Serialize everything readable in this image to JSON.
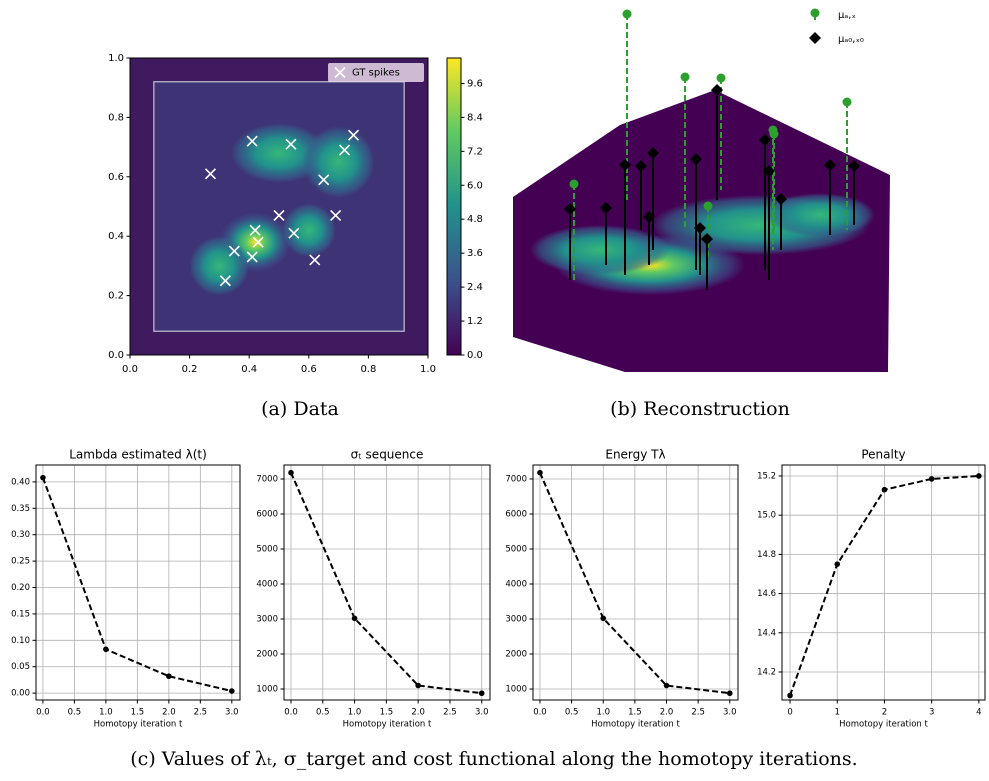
{
  "chart_data": [
    {
      "type": "scatter",
      "caption": "(a) Data",
      "series": [
        {
          "name": "GT spikes",
          "color": "#ffffff",
          "marker": "x",
          "x": [
            0.41,
            0.54,
            0.75,
            0.72,
            0.27,
            0.65,
            0.5,
            0.69,
            0.42,
            0.55,
            0.43,
            0.35,
            0.41,
            0.62,
            0.32
          ],
          "values": [
            0.72,
            0.71,
            0.74,
            0.69,
            0.61,
            0.59,
            0.47,
            0.47,
            0.42,
            0.41,
            0.38,
            0.35,
            0.33,
            0.32,
            0.25
          ]
        }
      ],
      "box": [
        0.08,
        0.92
      ],
      "xlim": [
        0,
        1
      ],
      "ylim": [
        0,
        1
      ],
      "xticks": [
        {
          "value": 0,
          "label": "0.0"
        },
        0.2,
        0.4,
        0.6,
        0.8,
        {
          "value": 1,
          "label": "1.0"
        }
      ],
      "yticks": [
        {
          "value": 0,
          "label": "0.0"
        },
        0.2,
        0.4,
        0.6,
        0.8,
        {
          "value": 1,
          "label": "1.0"
        }
      ],
      "legend": "upper right",
      "colormap": "viridis",
      "colorbar": {
        "lim": [
          0,
          10.5
        ],
        "ticks": [
          {
            "value": 0,
            "label": "0.0"
          },
          1.2,
          2.4,
          3.6,
          4.8,
          {
            "value": 6,
            "label": "6.0"
          },
          7.2,
          8.4,
          9.6
        ]
      }
    },
    {
      "type": "stem3d",
      "caption": "(b) Reconstruction",
      "series": [
        {
          "name": "μₐ,ₓ",
          "color": "#2ca02c",
          "marker": "circle"
        },
        {
          "name": "μₐ₀,ₓ₀",
          "color": "#000000",
          "marker": "diamond"
        }
      ]
    },
    {
      "type": "line",
      "title": "Lambda estimated λ(t)",
      "xlabel": "Homotopy iteration t",
      "color": "#000000",
      "x": [
        0,
        1,
        2,
        3
      ],
      "values": [
        0.408,
        0.083,
        0.032,
        0.004
      ],
      "xlim": [
        -0.11,
        3.13
      ],
      "ylim": [
        -0.013,
        0.432
      ],
      "grid": true,
      "xticks": [
        {
          "value": 0,
          "label": "0.0"
        },
        0.5,
        {
          "value": 1,
          "label": "1.0"
        },
        1.5,
        {
          "value": 2,
          "label": "2.0"
        },
        2.5,
        {
          "value": 3,
          "label": "3.0"
        }
      ],
      "yticks": [
        {
          "value": 0,
          "label": "0.00"
        },
        0.05,
        {
          "value": 0.1,
          "label": "0.10"
        },
        0.15,
        {
          "value": 0.2,
          "label": "0.20"
        },
        0.25,
        {
          "value": 0.3,
          "label": "0.30"
        },
        0.35,
        {
          "value": 0.4,
          "label": "0.40"
        }
      ]
    },
    {
      "type": "line",
      "title": "σₜ sequence",
      "xlabel": "Homotopy iteration t",
      "color": "#000000",
      "x": [
        0,
        1,
        2,
        3
      ],
      "values": [
        7180,
        3020,
        1100,
        880
      ],
      "xlim": [
        -0.11,
        3.13
      ],
      "ylim": [
        686,
        7400
      ],
      "grid": true,
      "xticks": [
        {
          "value": 0,
          "label": "0.0"
        },
        0.5,
        {
          "value": 1,
          "label": "1.0"
        },
        1.5,
        {
          "value": 2,
          "label": "2.0"
        },
        2.5,
        {
          "value": 3,
          "label": "3.0"
        }
      ],
      "yticks": [
        1000,
        2000,
        3000,
        4000,
        5000,
        6000,
        7000
      ]
    },
    {
      "type": "line",
      "title": "Energy Tλ",
      "xlabel": "Homotopy iteration t",
      "color": "#000000",
      "x": [
        0,
        1,
        2,
        3
      ],
      "values": [
        7180,
        3020,
        1100,
        880
      ],
      "xlim": [
        -0.11,
        3.13
      ],
      "ylim": [
        686,
        7400
      ],
      "grid": true,
      "xticks": [
        {
          "value": 0,
          "label": "0.0"
        },
        0.5,
        {
          "value": 1,
          "label": "1.0"
        },
        1.5,
        {
          "value": 2,
          "label": "2.0"
        },
        2.5,
        {
          "value": 3,
          "label": "3.0"
        }
      ],
      "yticks": [
        1000,
        2000,
        3000,
        4000,
        5000,
        6000,
        7000
      ]
    },
    {
      "type": "line",
      "title": "Penalty",
      "xlabel": "Homotopy iteration t",
      "color": "#000000",
      "x": [
        0,
        1,
        2,
        3,
        4
      ],
      "values": [
        14.08,
        14.75,
        15.13,
        15.185,
        15.2
      ],
      "xlim": [
        -0.17,
        4.13
      ],
      "ylim": [
        14.057,
        15.256
      ],
      "grid": true,
      "xticks": [
        0,
        1,
        2,
        3,
        4
      ],
      "yticks": [
        14.2,
        14.4,
        14.6,
        14.8,
        {
          "value": 15,
          "label": "15.0"
        },
        15.2
      ]
    }
  ],
  "figure_caption": "(c) Values of λₜ, σ_target and cost functional along the homotopy iterations."
}
